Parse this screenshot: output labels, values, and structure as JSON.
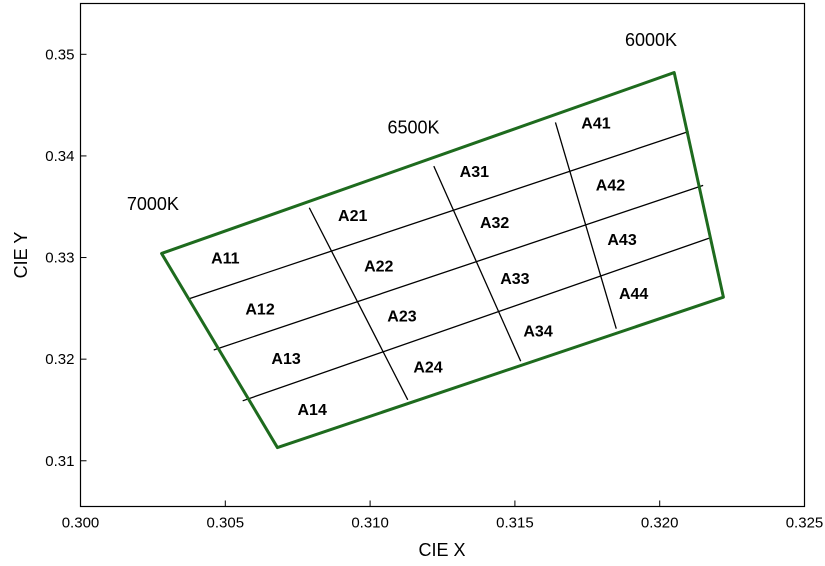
{
  "chart_data": {
    "type": "scatter",
    "title": "",
    "xlabel": "CIE X",
    "ylabel": "CIE Y",
    "xlim": [
      0.3,
      0.325
    ],
    "ylim": [
      0.3055,
      0.355
    ],
    "grid": false,
    "x_ticks": [
      {
        "value": 0.3,
        "label": "0.300"
      },
      {
        "value": 0.305,
        "label": "0.305"
      },
      {
        "value": 0.31,
        "label": "0.310"
      },
      {
        "value": 0.315,
        "label": "0.315"
      },
      {
        "value": 0.32,
        "label": "0.320"
      },
      {
        "value": 0.325,
        "label": "0.325"
      }
    ],
    "y_ticks": [
      {
        "value": 0.31,
        "label": "0.31"
      },
      {
        "value": 0.32,
        "label": "0.32"
      },
      {
        "value": 0.33,
        "label": "0.33"
      },
      {
        "value": 0.34,
        "label": "0.34"
      },
      {
        "value": 0.35,
        "label": "0.35"
      }
    ],
    "outline": {
      "color": "#1e6b1e",
      "vertices": [
        [
          0.3028,
          0.3304
        ],
        [
          0.3205,
          0.3482
        ],
        [
          0.3222,
          0.3261
        ],
        [
          0.3068,
          0.3113
        ]
      ]
    },
    "grid_lines": {
      "color": "#000000",
      "segments": [
        [
          [
            0.3079,
            0.3349
          ],
          [
            0.3113,
            0.316
          ]
        ],
        [
          [
            0.3122,
            0.339
          ],
          [
            0.3152,
            0.3198
          ]
        ],
        [
          [
            0.3164,
            0.3433
          ],
          [
            0.3185,
            0.323
          ]
        ],
        [
          [
            0.3037,
            0.3259
          ],
          [
            0.321,
            0.3424
          ]
        ],
        [
          [
            0.3046,
            0.3209
          ],
          [
            0.3215,
            0.3371
          ]
        ],
        [
          [
            0.3056,
            0.3159
          ],
          [
            0.3217,
            0.3319
          ]
        ]
      ]
    },
    "cct_labels": [
      {
        "text": "7000K",
        "x": 0.3025,
        "y": 0.3347
      },
      {
        "text": "6500K",
        "x": 0.3115,
        "y": 0.3422
      },
      {
        "text": "6000K",
        "x": 0.3197,
        "y": 0.3508
      }
    ],
    "cells": [
      {
        "label": "A11",
        "x": 0.305,
        "y": 0.33
      },
      {
        "label": "A12",
        "x": 0.3062,
        "y": 0.325
      },
      {
        "label": "A13",
        "x": 0.3071,
        "y": 0.3201
      },
      {
        "label": "A14",
        "x": 0.308,
        "y": 0.3151
      },
      {
        "label": "A21",
        "x": 0.3094,
        "y": 0.3342
      },
      {
        "label": "A22",
        "x": 0.3103,
        "y": 0.3292
      },
      {
        "label": "A23",
        "x": 0.3111,
        "y": 0.3243
      },
      {
        "label": "A24",
        "x": 0.312,
        "y": 0.3193
      },
      {
        "label": "A31",
        "x": 0.3136,
        "y": 0.3385
      },
      {
        "label": "A32",
        "x": 0.3143,
        "y": 0.3335
      },
      {
        "label": "A33",
        "x": 0.315,
        "y": 0.328
      },
      {
        "label": "A34",
        "x": 0.3158,
        "y": 0.3228
      },
      {
        "label": "A41",
        "x": 0.3178,
        "y": 0.3433
      },
      {
        "label": "A42",
        "x": 0.3183,
        "y": 0.3372
      },
      {
        "label": "A43",
        "x": 0.3187,
        "y": 0.3318
      },
      {
        "label": "A44",
        "x": 0.3191,
        "y": 0.3265
      }
    ]
  }
}
